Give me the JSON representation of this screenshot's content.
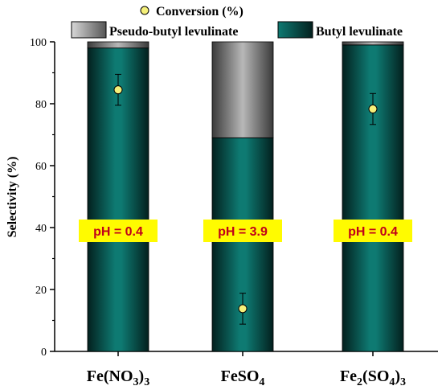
{
  "chart_data": {
    "type": "bar",
    "stacked": true,
    "categories": [
      {
        "base": "Fe(NO",
        "sub1": "3",
        "mid": ")",
        "sub2": "3"
      },
      {
        "base": "FeSO",
        "sub1": "4",
        "mid": "",
        "sub2": ""
      },
      {
        "base": "Fe",
        "sub1": "2",
        "mid": "(SO",
        "sub2": "4",
        "tail": ")",
        "sub3": "3"
      }
    ],
    "series": [
      {
        "name": "Butyl levulinate",
        "values": [
          98,
          69,
          99
        ],
        "color": "#0b6b64"
      },
      {
        "name": "Pseudo-butyl levulinate",
        "values": [
          2,
          31,
          1
        ],
        "color": "#a9a9a9"
      }
    ],
    "conversion": {
      "name": "Conversion (%)",
      "values": [
        84.5,
        13.8,
        78.3
      ],
      "errors": [
        5,
        5,
        5
      ],
      "color": "#f5f07a"
    },
    "ph_labels": [
      "pH = 0.4",
      "pH = 3.9",
      "pH = 0.4"
    ],
    "ylabel": "Selectivity (%)",
    "ylim": [
      0,
      100
    ],
    "yticks": [
      0,
      20,
      40,
      60,
      80,
      100
    ],
    "legend_placement": "top"
  }
}
